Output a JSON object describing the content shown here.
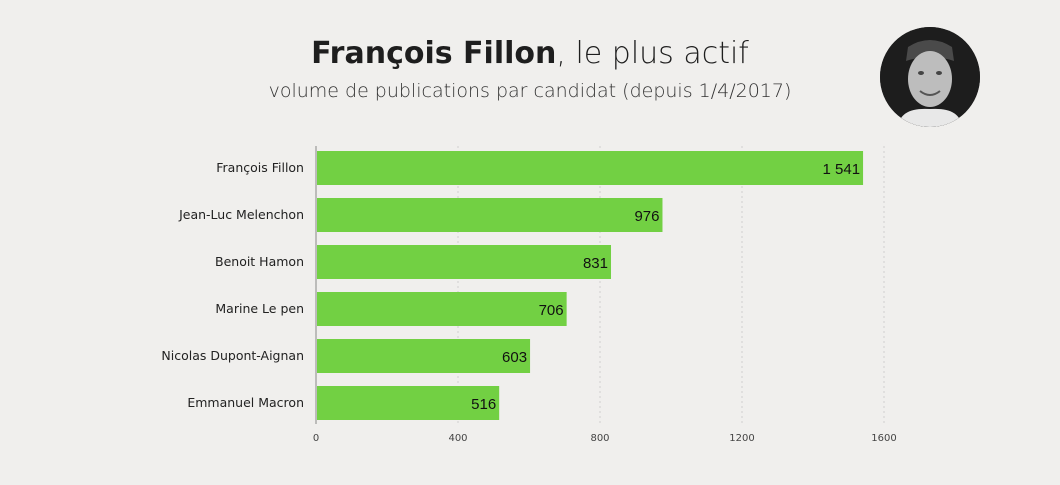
{
  "header": {
    "title_bold": "François Fillon",
    "title_rest": ", le plus actif",
    "subtitle": "volume de publications par candidat (depuis 1/4/2017)"
  },
  "colors": {
    "bar": "#72d043",
    "background": "#f0efed"
  },
  "chart_data": {
    "type": "bar",
    "orientation": "horizontal",
    "title": "François Fillon, le plus actif",
    "subtitle": "volume de publications par candidat (depuis 1/4/2017)",
    "categories": [
      "François Fillon",
      "Jean-Luc Melenchon",
      "Benoit Hamon",
      "Marine Le pen",
      "Nicolas Dupont-Aignan",
      "Emmanuel Macron"
    ],
    "values": [
      1541,
      976,
      831,
      706,
      603,
      516
    ],
    "value_labels": [
      "1 541",
      "976",
      "831",
      "706",
      "603",
      "516"
    ],
    "xlim": [
      0,
      1600
    ],
    "xticks": [
      0,
      400,
      800,
      1200,
      1600
    ],
    "grid": true,
    "xlabel": "",
    "ylabel": ""
  }
}
